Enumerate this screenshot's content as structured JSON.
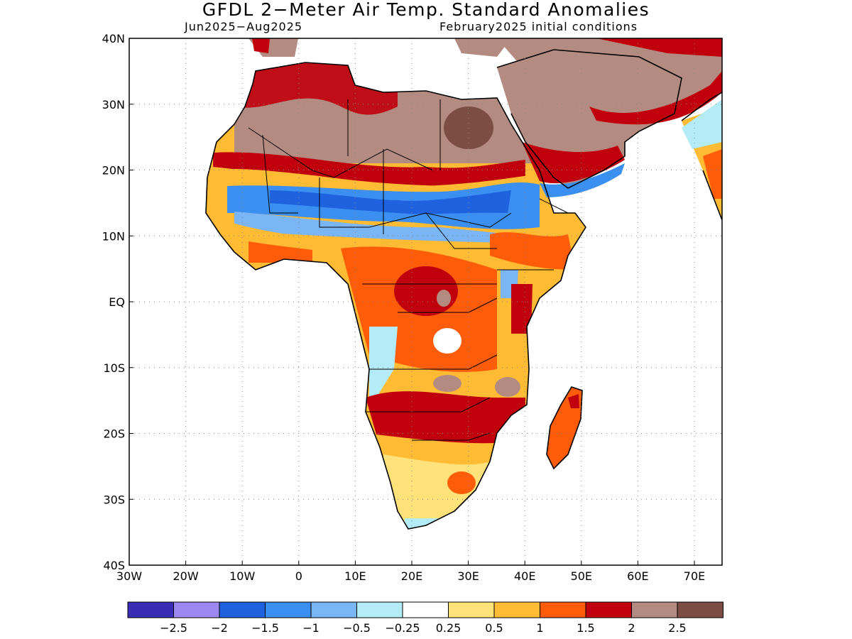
{
  "title": "GFDL 2−Meter Air Temp. Standard Anomalies",
  "subtitle_left": "Jun2025−Aug2025",
  "subtitle_right": "February2025 initial conditions",
  "axes": {
    "lon_ticks": [
      "30W",
      "20W",
      "10W",
      "0",
      "10E",
      "20E",
      "30E",
      "40E",
      "50E",
      "60E",
      "70E"
    ],
    "lat_ticks": [
      "40N",
      "30N",
      "20N",
      "10N",
      "EQ",
      "10S",
      "20S",
      "30S",
      "40S"
    ]
  },
  "colorbar": {
    "colors": [
      "#3a2db3",
      "#9b88f0",
      "#1f62e0",
      "#3a8ff0",
      "#7ab5f5",
      "#b3ecf6",
      "#ffffff",
      "#ffe27a",
      "#ffbb33",
      "#ff5c0a",
      "#c0000c",
      "#b38b80",
      "#7b4d43"
    ],
    "labels": [
      "−2.5",
      "−2",
      "−1.5",
      "−1",
      "−0.5",
      "−0.25",
      "0.25",
      "0.5",
      "1",
      "1.5",
      "2",
      "2.5"
    ]
  }
}
